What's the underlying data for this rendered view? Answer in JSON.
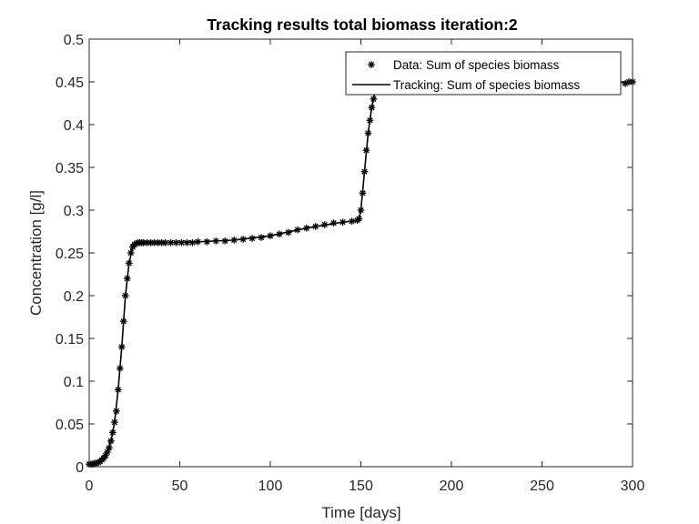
{
  "chart_data": {
    "type": "line",
    "title": "Tracking results total biomass iteration:2",
    "xlabel": "Time [days]",
    "ylabel": "Concentration [g/l]",
    "xlim": [
      0,
      300
    ],
    "ylim": [
      0,
      0.5
    ],
    "xticks": [
      0,
      50,
      100,
      150,
      200,
      250,
      300
    ],
    "yticks": [
      0,
      0.05,
      0.1,
      0.15,
      0.2,
      0.25,
      0.3,
      0.35,
      0.4,
      0.45,
      0.5
    ],
    "xtick_labels": [
      "0",
      "50",
      "100",
      "150",
      "200",
      "250",
      "300"
    ],
    "ytick_labels": [
      "0",
      "0.05",
      "0.1",
      "0.15",
      "0.2",
      "0.25",
      "0.3",
      "0.35",
      "0.4",
      "0.45",
      "0.5"
    ],
    "grid": false,
    "legend_position": "top-right",
    "series": [
      {
        "name": "Data: Sum of species biomass",
        "style": "markers",
        "marker": "asterisk",
        "color": "#000000",
        "x": [
          0,
          1,
          2,
          3,
          4,
          5,
          6,
          7,
          8,
          9,
          10,
          11,
          12,
          13,
          14,
          15,
          16,
          17,
          18,
          19,
          20,
          21,
          22,
          23,
          24,
          25,
          26,
          27,
          28,
          29,
          30,
          32,
          34,
          36,
          38,
          40,
          42,
          45,
          48,
          51,
          54,
          57,
          60,
          65,
          70,
          75,
          80,
          85,
          90,
          95,
          100,
          105,
          110,
          115,
          120,
          125,
          130,
          135,
          140,
          145,
          148,
          149,
          150,
          151,
          152,
          153,
          154,
          155,
          156,
          157,
          158,
          160,
          296,
          298,
          300
        ],
        "y": [
          0.003,
          0.003,
          0.003,
          0.004,
          0.004,
          0.005,
          0.006,
          0.008,
          0.01,
          0.013,
          0.017,
          0.022,
          0.03,
          0.04,
          0.052,
          0.065,
          0.09,
          0.115,
          0.14,
          0.17,
          0.2,
          0.22,
          0.238,
          0.25,
          0.257,
          0.26,
          0.261,
          0.262,
          0.262,
          0.262,
          0.262,
          0.262,
          0.262,
          0.262,
          0.262,
          0.262,
          0.262,
          0.262,
          0.262,
          0.262,
          0.262,
          0.262,
          0.263,
          0.263,
          0.264,
          0.264,
          0.265,
          0.266,
          0.267,
          0.268,
          0.27,
          0.272,
          0.274,
          0.277,
          0.279,
          0.281,
          0.283,
          0.285,
          0.286,
          0.287,
          0.288,
          0.29,
          0.3,
          0.32,
          0.345,
          0.37,
          0.39,
          0.405,
          0.42,
          0.43,
          0.44,
          0.445,
          0.448,
          0.45,
          0.45
        ]
      },
      {
        "name": "Tracking: Sum of species biomass",
        "style": "line",
        "color": "#000000",
        "x": [
          0,
          4,
          8,
          10,
          12,
          14,
          16,
          18,
          20,
          22,
          24,
          26,
          28,
          30,
          40,
          60,
          80,
          100,
          120,
          140,
          148,
          149,
          150,
          152,
          154,
          156,
          158,
          160,
          200,
          250,
          300
        ],
        "y": [
          0.003,
          0.004,
          0.01,
          0.017,
          0.03,
          0.052,
          0.09,
          0.14,
          0.2,
          0.238,
          0.257,
          0.261,
          0.262,
          0.262,
          0.262,
          0.263,
          0.265,
          0.27,
          0.279,
          0.286,
          0.288,
          0.29,
          0.3,
          0.345,
          0.39,
          0.42,
          0.44,
          0.445,
          0.447,
          0.449,
          0.45
        ]
      }
    ]
  }
}
